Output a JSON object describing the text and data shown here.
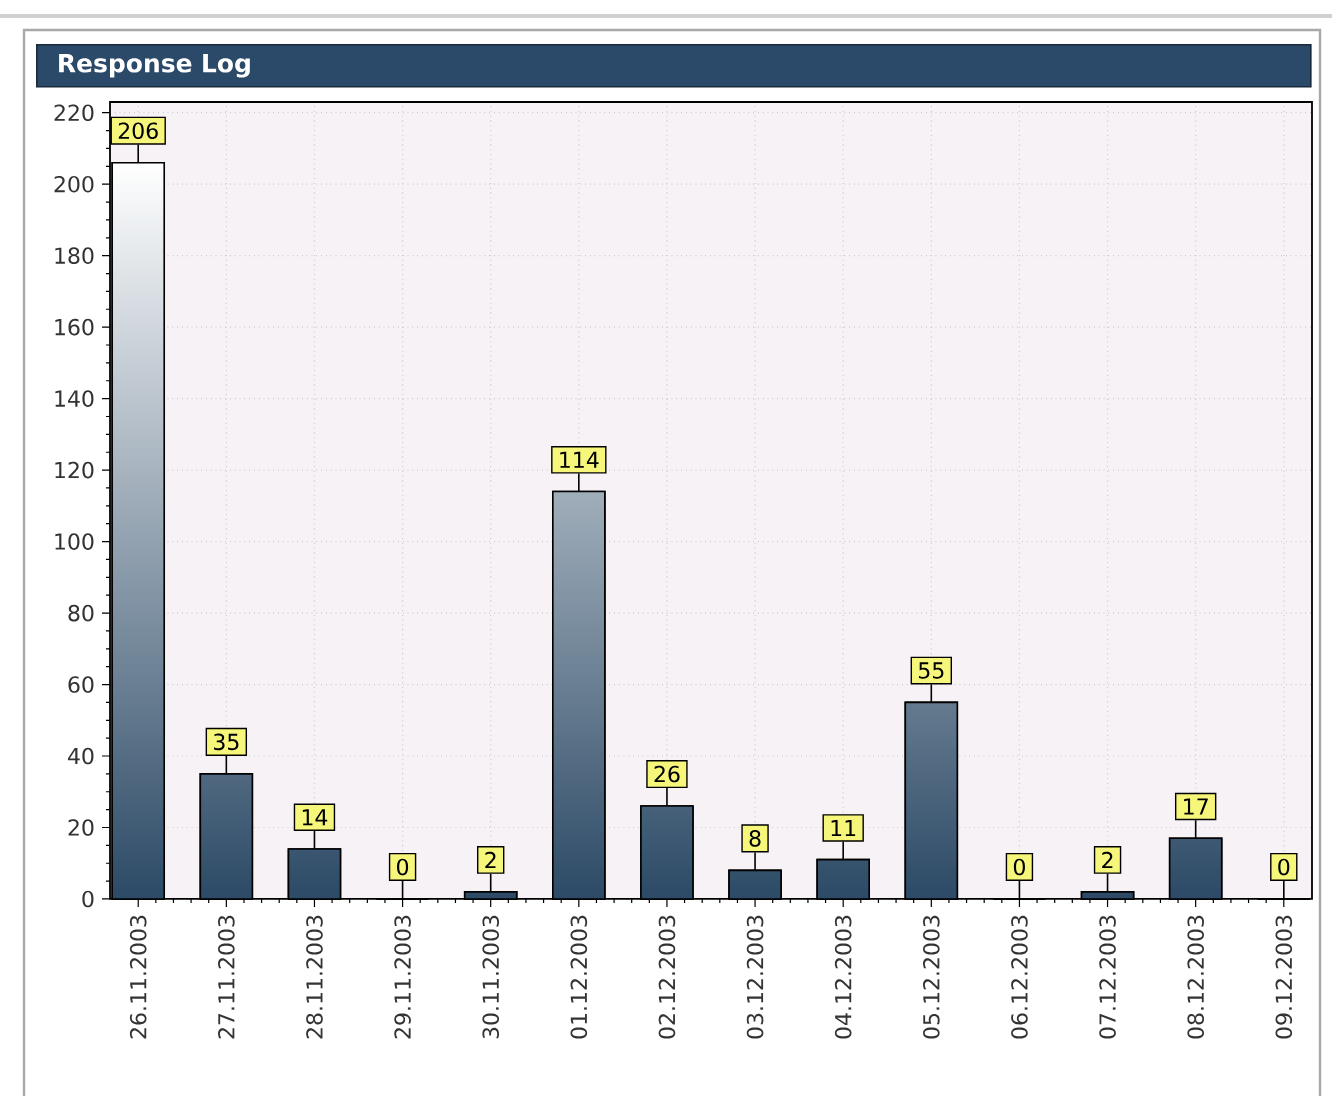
{
  "chart_data": {
    "type": "bar",
    "title": "Response Log",
    "categories": [
      "26.11.2003",
      "27.11.2003",
      "28.11.2003",
      "29.11.2003",
      "30.11.2003",
      "01.12.2003",
      "02.12.2003",
      "03.12.2003",
      "04.12.2003",
      "05.12.2003",
      "06.12.2003",
      "07.12.2003",
      "08.12.2003",
      "09.12.2003"
    ],
    "values": [
      206,
      35,
      14,
      0,
      2,
      114,
      26,
      8,
      11,
      55,
      0,
      2,
      17,
      0
    ],
    "color": "#2c4a66",
    "ylim": [
      0,
      223
    ],
    "yticks": [
      0,
      20,
      40,
      60,
      80,
      100,
      120,
      140,
      160,
      180,
      200,
      220
    ],
    "grid": true,
    "data_labels": true
  }
}
